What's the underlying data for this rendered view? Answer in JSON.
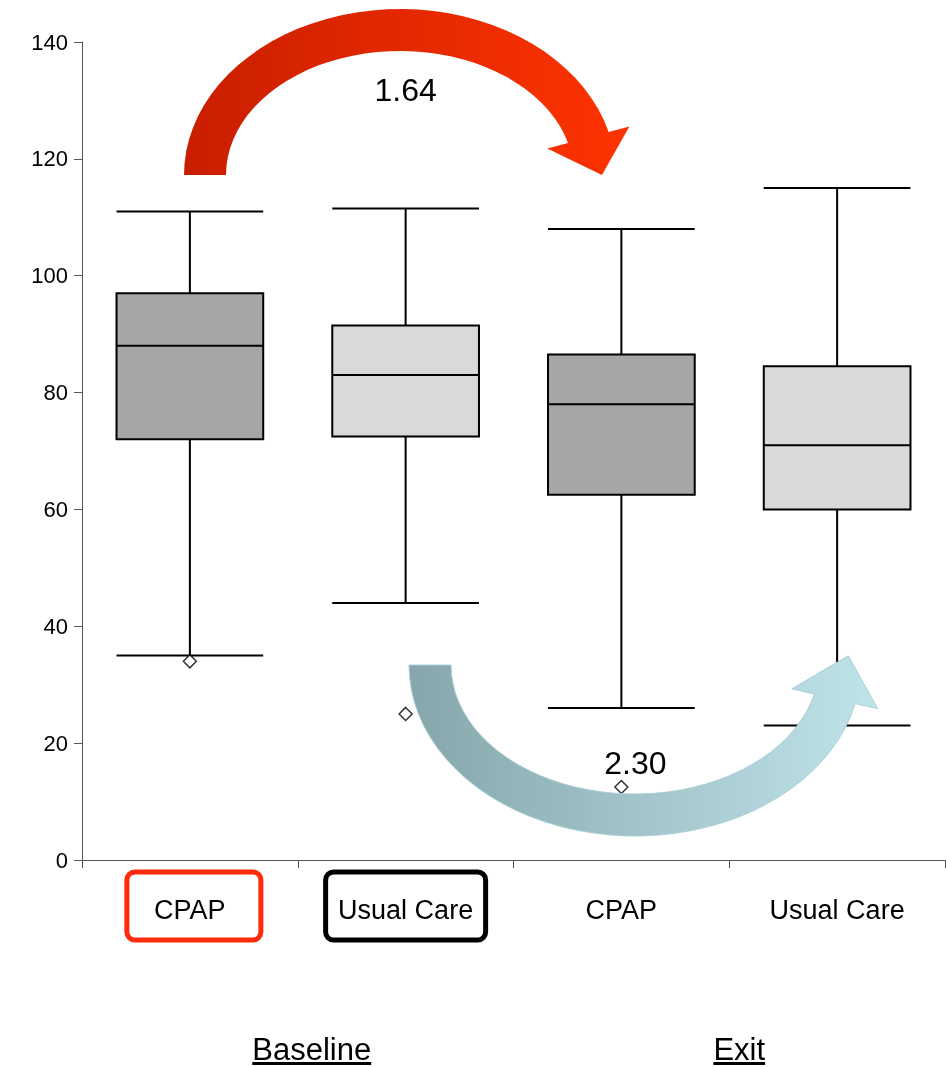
{
  "chart_data": {
    "type": "box",
    "categories": [
      "CPAP",
      "Usual Care",
      "CPAP",
      "Usual Care"
    ],
    "boxes": [
      {
        "low": 35,
        "q1": 72,
        "median": 88,
        "q3": 97,
        "high": 111,
        "outliers": [
          34
        ]
      },
      {
        "low": 44,
        "q1": 72.5,
        "median": 83,
        "q3": 91.5,
        "high": 111.5,
        "outliers": [
          25
        ]
      },
      {
        "low": 26,
        "q1": 62.5,
        "median": 78,
        "q3": 86.5,
        "high": 108,
        "outliers": [
          12.5
        ]
      },
      {
        "low": 23,
        "q1": 60,
        "median": 71,
        "q3": 84.5,
        "high": 115
      }
    ],
    "colors": [
      "#a6a6a6",
      "#d9d9d9",
      "#a6a6a6",
      "#d9d9d9"
    ],
    "ylim": [
      0,
      140
    ],
    "yticks": [
      0,
      20,
      40,
      60,
      80,
      100,
      120,
      140
    ],
    "grid": false,
    "marker": "diamond",
    "annotations": [
      "1.64",
      "2.30",
      "Baseline",
      "Exit"
    ]
  }
}
